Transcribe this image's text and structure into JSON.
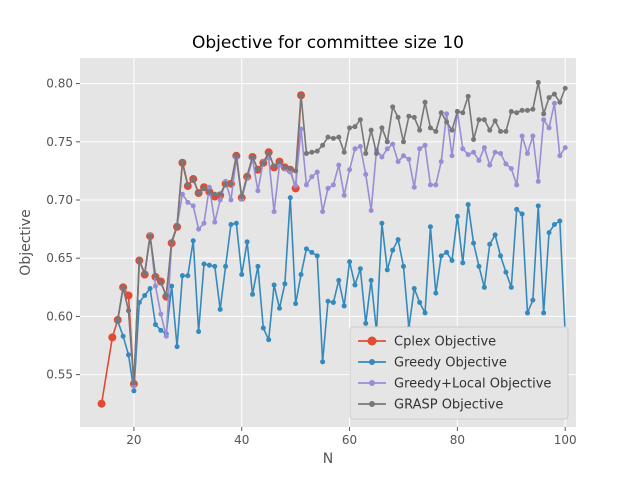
{
  "chart_data": {
    "type": "line",
    "title": "Objective for committee size 10",
    "xlabel": "N",
    "ylabel": "Objective",
    "xlim": [
      10,
      102
    ],
    "ylim": [
      0.505,
      0.822
    ],
    "xticks": [
      20,
      40,
      60,
      80,
      100
    ],
    "yticks": [
      0.55,
      0.6,
      0.65,
      0.7,
      0.75,
      0.8
    ],
    "grid": true,
    "legend_position": "lower-right",
    "series": [
      {
        "name": "Cplex Objective",
        "color": "#E24A33",
        "marker_size": 4,
        "x": [
          14,
          16,
          17,
          18,
          19,
          20,
          21,
          22,
          23,
          24,
          25,
          26,
          27,
          28,
          29,
          30,
          31,
          32,
          33,
          34,
          35,
          36,
          37,
          38,
          39,
          40,
          41,
          42,
          43,
          44,
          45,
          46,
          47,
          48,
          49,
          50,
          51
        ],
        "values": [
          0.525,
          0.582,
          0.597,
          0.625,
          0.618,
          0.542,
          0.648,
          0.636,
          0.669,
          0.634,
          0.63,
          0.617,
          0.663,
          0.677,
          0.732,
          0.712,
          0.718,
          0.706,
          0.711,
          0.707,
          0.703,
          0.704,
          0.714,
          0.714,
          0.738,
          0.702,
          0.72,
          0.737,
          0.726,
          0.732,
          0.741,
          0.728,
          0.733,
          0.728,
          0.726,
          0.71,
          0.79
        ]
      },
      {
        "name": "Greedy Objective",
        "color": "#348ABD",
        "marker_size": 2.5,
        "x": [
          17,
          18,
          19,
          20,
          21,
          22,
          23,
          24,
          25,
          26,
          27,
          28,
          29,
          30,
          31,
          32,
          33,
          34,
          35,
          36,
          37,
          38,
          39,
          40,
          41,
          42,
          43,
          44,
          45,
          46,
          47,
          48,
          49,
          50,
          51,
          52,
          53,
          54,
          55,
          56,
          57,
          58,
          59,
          60,
          61,
          62,
          63,
          64,
          65,
          66,
          67,
          68,
          69,
          70,
          71,
          72,
          73,
          74,
          75,
          76,
          77,
          78,
          79,
          80,
          81,
          82,
          83,
          84,
          85,
          86,
          87,
          88,
          89,
          90,
          91,
          92,
          93,
          94,
          95,
          96,
          97,
          98,
          99,
          100
        ],
        "values": [
          0.596,
          0.583,
          0.567,
          0.536,
          0.612,
          0.618,
          0.624,
          0.593,
          0.588,
          0.585,
          0.626,
          0.574,
          0.635,
          0.635,
          0.665,
          0.587,
          0.645,
          0.644,
          0.643,
          0.606,
          0.643,
          0.679,
          0.68,
          0.636,
          0.664,
          0.619,
          0.643,
          0.59,
          0.58,
          0.627,
          0.607,
          0.628,
          0.702,
          0.611,
          0.636,
          0.658,
          0.655,
          0.652,
          0.561,
          0.613,
          0.612,
          0.631,
          0.609,
          0.647,
          0.627,
          0.641,
          0.594,
          0.631,
          0.587,
          0.68,
          0.64,
          0.657,
          0.666,
          0.643,
          0.59,
          0.624,
          0.612,
          0.603,
          0.677,
          0.62,
          0.652,
          0.655,
          0.648,
          0.686,
          0.646,
          0.696,
          0.663,
          0.643,
          0.625,
          0.662,
          0.67,
          0.652,
          0.638,
          0.625,
          0.692,
          0.688,
          0.603,
          0.614,
          0.695,
          0.603,
          0.672,
          0.679,
          0.682,
          0.585
        ]
      },
      {
        "name": "Greedy+Local Objective",
        "color": "#988ED5",
        "marker_size": 2.5,
        "x": [
          17,
          18,
          19,
          20,
          21,
          22,
          23,
          24,
          25,
          26,
          27,
          28,
          29,
          30,
          31,
          32,
          33,
          34,
          35,
          36,
          37,
          38,
          39,
          40,
          41,
          42,
          43,
          44,
          45,
          46,
          47,
          48,
          49,
          50,
          51,
          52,
          53,
          54,
          55,
          56,
          57,
          58,
          59,
          60,
          61,
          62,
          63,
          64,
          65,
          66,
          67,
          68,
          69,
          70,
          71,
          72,
          73,
          74,
          75,
          76,
          77,
          78,
          79,
          80,
          81,
          82,
          83,
          84,
          85,
          86,
          87,
          88,
          89,
          90,
          91,
          92,
          93,
          94,
          95,
          96,
          97,
          98,
          99,
          100
        ],
        "values": [
          0.597,
          0.624,
          0.605,
          0.54,
          0.648,
          0.637,
          0.67,
          0.626,
          0.602,
          0.583,
          0.664,
          0.678,
          0.705,
          0.698,
          0.695,
          0.675,
          0.68,
          0.711,
          0.681,
          0.7,
          0.716,
          0.7,
          0.736,
          0.701,
          0.719,
          0.735,
          0.708,
          0.733,
          0.736,
          0.69,
          0.73,
          0.727,
          0.724,
          0.712,
          0.761,
          0.713,
          0.72,
          0.724,
          0.69,
          0.71,
          0.713,
          0.73,
          0.704,
          0.726,
          0.744,
          0.746,
          0.722,
          0.691,
          0.743,
          0.737,
          0.744,
          0.748,
          0.733,
          0.738,
          0.735,
          0.711,
          0.744,
          0.747,
          0.713,
          0.713,
          0.733,
          0.774,
          0.738,
          0.776,
          0.744,
          0.739,
          0.741,
          0.734,
          0.745,
          0.73,
          0.741,
          0.74,
          0.731,
          0.727,
          0.713,
          0.755,
          0.74,
          0.755,
          0.716,
          0.769,
          0.762,
          0.783,
          0.738,
          0.745
        ]
      },
      {
        "name": "GRASP Objective",
        "color": "#777777",
        "marker_size": 2.5,
        "x": [
          17,
          18,
          19,
          20,
          21,
          22,
          23,
          24,
          25,
          26,
          27,
          28,
          29,
          30,
          31,
          32,
          33,
          34,
          35,
          36,
          37,
          38,
          39,
          40,
          41,
          42,
          43,
          44,
          45,
          46,
          47,
          48,
          49,
          50,
          51,
          52,
          53,
          54,
          55,
          56,
          57,
          58,
          59,
          60,
          61,
          62,
          63,
          64,
          65,
          66,
          67,
          68,
          69,
          70,
          71,
          72,
          73,
          74,
          75,
          76,
          77,
          78,
          79,
          80,
          81,
          82,
          83,
          84,
          85,
          86,
          87,
          88,
          89,
          90,
          91,
          92,
          93,
          94,
          95,
          96,
          97,
          98,
          99,
          100
        ],
        "values": [
          0.597,
          0.625,
          0.605,
          0.543,
          0.648,
          0.637,
          0.669,
          0.635,
          0.629,
          0.618,
          0.664,
          0.678,
          0.733,
          0.713,
          0.718,
          0.706,
          0.71,
          0.707,
          0.705,
          0.705,
          0.714,
          0.714,
          0.738,
          0.703,
          0.721,
          0.737,
          0.726,
          0.732,
          0.74,
          0.729,
          0.733,
          0.728,
          0.727,
          0.725,
          0.79,
          0.74,
          0.741,
          0.742,
          0.747,
          0.754,
          0.753,
          0.754,
          0.741,
          0.762,
          0.763,
          0.769,
          0.74,
          0.76,
          0.74,
          0.762,
          0.75,
          0.78,
          0.771,
          0.75,
          0.772,
          0.771,
          0.76,
          0.784,
          0.762,
          0.759,
          0.775,
          0.767,
          0.76,
          0.776,
          0.775,
          0.789,
          0.752,
          0.769,
          0.769,
          0.76,
          0.768,
          0.759,
          0.759,
          0.776,
          0.775,
          0.777,
          0.777,
          0.778,
          0.801,
          0.774,
          0.788,
          0.791,
          0.784,
          0.796
        ]
      }
    ]
  }
}
